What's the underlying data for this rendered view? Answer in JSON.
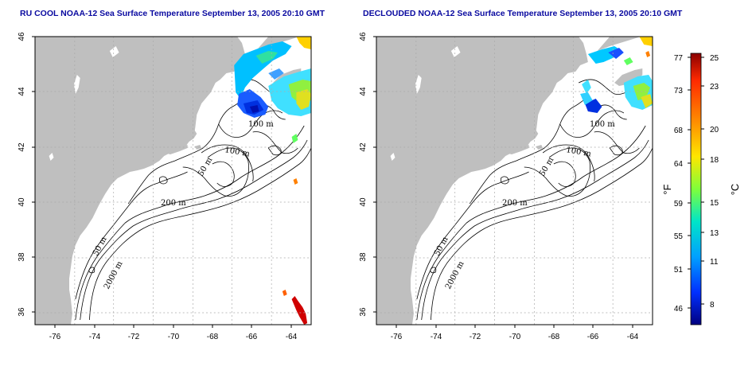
{
  "panels": [
    {
      "id": "left",
      "title": "RU COOL NOAA-12 Sea Surface Temperature September 13, 2005 20:10 GMT",
      "x_ticks": [
        "-76",
        "-74",
        "-72",
        "-70",
        "-68",
        "-66",
        "-64"
      ],
      "y_ticks": [
        "36",
        "38",
        "40",
        "42",
        "44",
        "46"
      ],
      "contour_labels": [
        "100 m",
        "100 m",
        "50 m",
        "200 m",
        "50 m",
        "2000 m"
      ]
    },
    {
      "id": "right",
      "title": "DECLOUDED NOAA-12 Sea Surface Temperature September 13, 2005 20:10 GMT",
      "x_ticks": [
        "-76",
        "-74",
        "-72",
        "-70",
        "-68",
        "-66",
        "-64"
      ],
      "y_ticks": [
        "36",
        "38",
        "40",
        "42",
        "44",
        "46"
      ],
      "contour_labels": [
        "100 m",
        "100 m",
        "50 m",
        "200 m",
        "50 m",
        "2000 m"
      ]
    }
  ],
  "colorbar": {
    "fahrenheit_ticks": [
      "77",
      "73",
      "68",
      "64",
      "59",
      "55",
      "51",
      "46"
    ],
    "celsius_ticks": [
      "25",
      "23",
      "20",
      "18",
      "15",
      "13",
      "11",
      "8"
    ],
    "fahrenheit_unit": "°F",
    "celsius_unit": "°C",
    "colors": [
      "#8b0000",
      "#ff2a00",
      "#ff8c00",
      "#ffe600",
      "#7fff3a",
      "#00e5c8",
      "#00a0ff",
      "#0030ff",
      "#000080"
    ]
  },
  "colors": {
    "land": "#bfbfbf",
    "title": "#0a0aa0",
    "grid": "#aaaaaa"
  }
}
